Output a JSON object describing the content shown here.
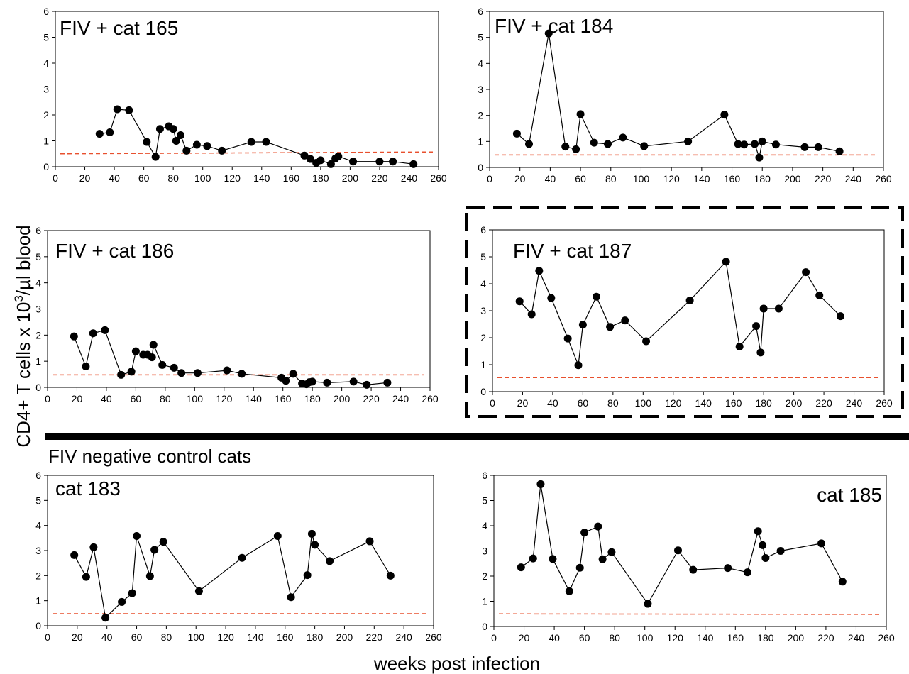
{
  "labels": {
    "y_axis": "CD4+ T cells x 10",
    "y_axis_sup": "3",
    "y_axis_tail": "/µl blood",
    "x_axis": "weeks post infection",
    "group_negative": "FIV negative control cats"
  },
  "colors": {
    "threshold": "#e8502e",
    "series": "#000000"
  },
  "chart_data": [
    {
      "type": "line",
      "title": "FIV + cat 165",
      "xlim": [
        0,
        260
      ],
      "ylim": [
        0,
        6
      ],
      "xticks": [
        0,
        20,
        40,
        60,
        80,
        100,
        120,
        140,
        160,
        180,
        200,
        220,
        240,
        260
      ],
      "yticks": [
        0,
        1,
        2,
        3,
        4,
        5,
        6
      ],
      "threshold": [
        0.5,
        0.57
      ],
      "x": [
        30,
        37,
        42,
        50,
        62,
        68,
        71,
        77,
        80,
        82,
        85,
        89,
        96,
        103,
        113,
        133,
        143,
        169,
        173,
        177,
        180,
        187,
        190,
        192,
        202,
        220,
        229,
        243
      ],
      "y": [
        1.27,
        1.33,
        2.22,
        2.18,
        0.96,
        0.38,
        1.46,
        1.56,
        1.46,
        1.0,
        1.22,
        0.62,
        0.85,
        0.8,
        0.62,
        0.96,
        0.96,
        0.43,
        0.3,
        0.15,
        0.25,
        0.1,
        0.32,
        0.4,
        0.2,
        0.2,
        0.2,
        0.1
      ]
    },
    {
      "type": "line",
      "title": "FIV + cat 184",
      "xlim": [
        0,
        260
      ],
      "ylim": [
        0,
        6
      ],
      "xticks": [
        0,
        20,
        40,
        60,
        80,
        100,
        120,
        140,
        160,
        180,
        200,
        220,
        240,
        260
      ],
      "yticks": [
        0,
        1,
        2,
        3,
        4,
        5,
        6
      ],
      "threshold": [
        0.48,
        0.48
      ],
      "x": [
        18,
        26,
        39,
        50,
        57,
        60,
        69,
        78,
        88,
        102,
        131,
        155,
        164,
        168,
        175,
        178,
        180,
        189,
        208,
        217,
        231
      ],
      "y": [
        1.3,
        0.9,
        5.15,
        0.8,
        0.7,
        2.05,
        0.95,
        0.9,
        1.15,
        0.82,
        1.0,
        2.03,
        0.9,
        0.88,
        0.9,
        0.38,
        1.0,
        0.88,
        0.78,
        0.78,
        0.62
      ]
    },
    {
      "type": "line",
      "title": "FIV + cat 186",
      "xlim": [
        0,
        260
      ],
      "ylim": [
        0,
        6
      ],
      "xticks": [
        0,
        20,
        40,
        60,
        80,
        100,
        120,
        140,
        160,
        180,
        200,
        220,
        240,
        260
      ],
      "yticks": [
        0,
        1,
        2,
        3,
        4,
        5,
        6
      ],
      "threshold": [
        0.48,
        0.48
      ],
      "x": [
        18,
        26,
        31,
        39,
        50,
        57,
        60,
        65,
        68,
        71,
        72,
        78,
        86,
        91,
        102,
        122,
        132,
        159,
        162,
        167,
        173,
        176,
        178,
        180,
        190,
        208,
        217,
        231
      ],
      "y": [
        1.95,
        0.8,
        2.07,
        2.19,
        0.48,
        0.6,
        1.38,
        1.25,
        1.25,
        1.15,
        1.63,
        0.86,
        0.75,
        0.55,
        0.55,
        0.65,
        0.52,
        0.37,
        0.25,
        0.52,
        0.15,
        0.12,
        0.2,
        0.22,
        0.18,
        0.22,
        0.1,
        0.18
      ]
    },
    {
      "type": "line",
      "title": "FIV + cat 187",
      "xlim": [
        0,
        260
      ],
      "ylim": [
        0,
        6
      ],
      "xticks": [
        0,
        20,
        40,
        60,
        80,
        100,
        120,
        140,
        160,
        180,
        200,
        220,
        240,
        260
      ],
      "yticks": [
        0,
        1,
        2,
        3,
        4,
        5,
        6
      ],
      "threshold": [
        0.52,
        0.52
      ],
      "x": [
        18,
        26,
        31,
        39,
        50,
        57,
        60,
        69,
        78,
        88,
        102,
        131,
        155,
        164,
        175,
        178,
        180,
        190,
        208,
        217,
        231
      ],
      "y": [
        3.35,
        2.87,
        4.48,
        3.47,
        1.97,
        0.98,
        2.48,
        3.52,
        2.4,
        2.64,
        1.87,
        3.38,
        4.82,
        1.67,
        2.43,
        1.45,
        3.08,
        3.08,
        4.43,
        3.57,
        2.8
      ]
    },
    {
      "type": "line",
      "title": "cat 183",
      "xlim": [
        0,
        260
      ],
      "ylim": [
        0,
        6
      ],
      "xticks": [
        0,
        20,
        40,
        60,
        80,
        100,
        120,
        140,
        160,
        180,
        200,
        220,
        240,
        260
      ],
      "yticks": [
        0,
        1,
        2,
        3,
        4,
        5,
        6
      ],
      "threshold": [
        0.48,
        0.48
      ],
      "x": [
        18,
        26,
        31,
        39,
        50,
        57,
        60,
        69,
        72,
        78,
        102,
        131,
        155,
        164,
        175,
        178,
        180,
        190,
        217,
        231
      ],
      "y": [
        2.82,
        1.95,
        3.13,
        0.32,
        0.95,
        1.3,
        3.58,
        1.98,
        3.03,
        3.35,
        1.38,
        2.71,
        3.58,
        1.14,
        2.02,
        3.67,
        3.23,
        2.58,
        3.37,
        2.0
      ]
    },
    {
      "type": "line",
      "title": "cat 185",
      "xlim": [
        0,
        260
      ],
      "ylim": [
        0,
        6
      ],
      "xticks": [
        0,
        20,
        40,
        60,
        80,
        100,
        120,
        140,
        160,
        180,
        200,
        220,
        240,
        260
      ],
      "yticks": [
        0,
        1,
        2,
        3,
        4,
        5,
        6
      ],
      "threshold": [
        0.5,
        0.48
      ],
      "x": [
        18,
        26,
        31,
        39,
        50,
        57,
        60,
        69,
        72,
        78,
        102,
        122,
        132,
        155,
        168,
        175,
        178,
        180,
        190,
        217,
        231
      ],
      "y": [
        2.35,
        2.7,
        5.65,
        2.68,
        1.4,
        2.33,
        3.73,
        3.97,
        2.67,
        2.95,
        0.9,
        3.02,
        2.25,
        2.32,
        2.15,
        3.78,
        3.23,
        2.72,
        3.0,
        3.3,
        1.78
      ]
    }
  ]
}
